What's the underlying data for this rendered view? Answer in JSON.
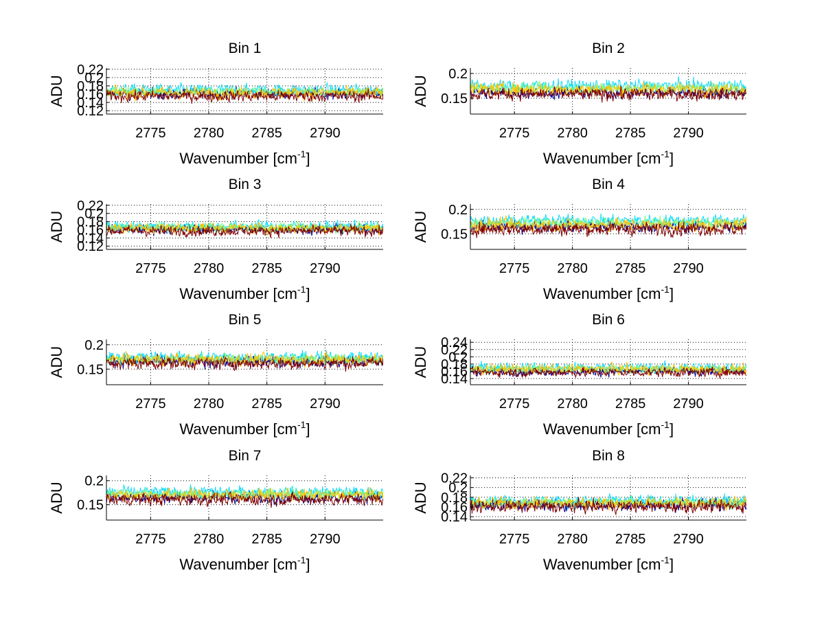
{
  "chart_data": {
    "type": "line",
    "layout": "4x2 subplot grid",
    "series_colors": [
      "#00008f",
      "#10dcf8",
      "#7cff82",
      "#ffc000",
      "#800000"
    ],
    "series_note": "5 overlaid noisy spectra per subplot (jet colormap); values summarized as mean and noise amplitude",
    "subplots": [
      {
        "title": "Bin 1",
        "xlabel": "Wavenumber [cm",
        "xlabel_sup": "-1",
        "xlabel_close": "]",
        "ylabel": "ADU",
        "xlim": [
          2771.2,
          2795
        ],
        "ylim": [
          0.112,
          0.223
        ],
        "xticks": [
          2775,
          2780,
          2785,
          2790
        ],
        "xtick_labels": [
          "2775",
          "2780",
          "2785",
          "2790"
        ],
        "yticks": [
          0.12,
          0.14,
          0.16,
          0.18,
          0.2,
          0.22
        ],
        "ytick_labels": [
          "0.12",
          "0.14",
          "0.16",
          "0.18",
          "0.2",
          "0.22"
        ],
        "grid": true,
        "series": [
          {
            "mean": 0.162,
            "noise": 0.012
          },
          {
            "mean": 0.17,
            "noise": 0.012
          },
          {
            "mean": 0.166,
            "noise": 0.01
          },
          {
            "mean": 0.163,
            "noise": 0.013
          },
          {
            "mean": 0.155,
            "noise": 0.012
          }
        ]
      },
      {
        "title": "Bin 2",
        "xlabel": "Wavenumber [cm",
        "xlabel_sup": "-1",
        "xlabel_close": "]",
        "ylabel": "ADU",
        "xlim": [
          2771.2,
          2795
        ],
        "ylim": [
          0.118,
          0.211
        ],
        "xticks": [
          2775,
          2780,
          2785,
          2790
        ],
        "xtick_labels": [
          "2775",
          "2780",
          "2785",
          "2790"
        ],
        "yticks": [
          0.15,
          0.2
        ],
        "ytick_labels": [
          "0.15",
          "0.2"
        ],
        "grid": true,
        "series": [
          {
            "mean": 0.162,
            "noise": 0.011
          },
          {
            "mean": 0.175,
            "noise": 0.011
          },
          {
            "mean": 0.17,
            "noise": 0.009
          },
          {
            "mean": 0.168,
            "noise": 0.012
          },
          {
            "mean": 0.158,
            "noise": 0.011
          }
        ]
      },
      {
        "title": "Bin 3",
        "xlabel": "Wavenumber [cm",
        "xlabel_sup": "-1",
        "xlabel_close": "]",
        "ylabel": "ADU",
        "xlim": [
          2771.2,
          2795
        ],
        "ylim": [
          0.112,
          0.223
        ],
        "xticks": [
          2775,
          2780,
          2785,
          2790
        ],
        "xtick_labels": [
          "2775",
          "2780",
          "2785",
          "2790"
        ],
        "yticks": [
          0.12,
          0.14,
          0.16,
          0.18,
          0.2,
          0.22
        ],
        "ytick_labels": [
          "0.12",
          "0.14",
          "0.16",
          "0.18",
          "0.2",
          "0.22"
        ],
        "grid": true,
        "series": [
          {
            "mean": 0.162,
            "noise": 0.011
          },
          {
            "mean": 0.168,
            "noise": 0.012
          },
          {
            "mean": 0.166,
            "noise": 0.01
          },
          {
            "mean": 0.164,
            "noise": 0.012
          },
          {
            "mean": 0.157,
            "noise": 0.011
          }
        ]
      },
      {
        "title": "Bin 4",
        "xlabel": "Wavenumber [cm",
        "xlabel_sup": "-1",
        "xlabel_close": "]",
        "ylabel": "ADU",
        "xlim": [
          2771.2,
          2795
        ],
        "ylim": [
          0.118,
          0.211
        ],
        "xticks": [
          2775,
          2780,
          2785,
          2790
        ],
        "xtick_labels": [
          "2775",
          "2780",
          "2785",
          "2790"
        ],
        "yticks": [
          0.15,
          0.2
        ],
        "ytick_labels": [
          "0.15",
          "0.2"
        ],
        "grid": true,
        "series": [
          {
            "mean": 0.165,
            "noise": 0.011
          },
          {
            "mean": 0.177,
            "noise": 0.011
          },
          {
            "mean": 0.172,
            "noise": 0.009
          },
          {
            "mean": 0.168,
            "noise": 0.012
          },
          {
            "mean": 0.16,
            "noise": 0.012
          }
        ]
      },
      {
        "title": "Bin 5",
        "xlabel": "Wavenumber [cm",
        "xlabel_sup": "-1",
        "xlabel_close": "]",
        "ylabel": "ADU",
        "xlim": [
          2771.2,
          2795
        ],
        "ylim": [
          0.118,
          0.211
        ],
        "xticks": [
          2775,
          2780,
          2785,
          2790
        ],
        "xtick_labels": [
          "2775",
          "2780",
          "2785",
          "2790"
        ],
        "yticks": [
          0.15,
          0.2
        ],
        "ytick_labels": [
          "0.15",
          "0.2"
        ],
        "grid": true,
        "series": [
          {
            "mean": 0.166,
            "noise": 0.011
          },
          {
            "mean": 0.174,
            "noise": 0.011
          },
          {
            "mean": 0.17,
            "noise": 0.009
          },
          {
            "mean": 0.17,
            "noise": 0.011
          },
          {
            "mean": 0.162,
            "noise": 0.011
          }
        ]
      },
      {
        "title": "Bin 6",
        "xlabel": "Wavenumber [cm",
        "xlabel_sup": "-1",
        "xlabel_close": "]",
        "ylabel": "ADU",
        "xlim": [
          2771.2,
          2795
        ],
        "ylim": [
          0.123,
          0.248
        ],
        "xticks": [
          2775,
          2780,
          2785,
          2790
        ],
        "xtick_labels": [
          "2775",
          "2780",
          "2785",
          "2790"
        ],
        "yticks": [
          0.14,
          0.16,
          0.18,
          0.2,
          0.22,
          0.24
        ],
        "ytick_labels": [
          "0.14",
          "0.16",
          "0.18",
          "0.2",
          "0.22",
          "0.24"
        ],
        "grid": true,
        "series": [
          {
            "mean": 0.16,
            "noise": 0.011
          },
          {
            "mean": 0.17,
            "noise": 0.013
          },
          {
            "mean": 0.166,
            "noise": 0.01
          },
          {
            "mean": 0.166,
            "noise": 0.012
          },
          {
            "mean": 0.157,
            "noise": 0.011
          }
        ]
      },
      {
        "title": "Bin 7",
        "xlabel": "Wavenumber [cm",
        "xlabel_sup": "-1",
        "xlabel_close": "]",
        "ylabel": "ADU",
        "xlim": [
          2771.2,
          2795
        ],
        "ylim": [
          0.118,
          0.211
        ],
        "xticks": [
          2775,
          2780,
          2785,
          2790
        ],
        "xtick_labels": [
          "2775",
          "2780",
          "2785",
          "2790"
        ],
        "yticks": [
          0.15,
          0.2
        ],
        "ytick_labels": [
          "0.15",
          "0.2"
        ],
        "grid": true,
        "series": [
          {
            "mean": 0.166,
            "noise": 0.011
          },
          {
            "mean": 0.176,
            "noise": 0.011
          },
          {
            "mean": 0.172,
            "noise": 0.009
          },
          {
            "mean": 0.17,
            "noise": 0.011
          },
          {
            "mean": 0.161,
            "noise": 0.011
          }
        ]
      },
      {
        "title": "Bin 8",
        "xlabel": "Wavenumber [cm",
        "xlabel_sup": "-1",
        "xlabel_close": "]",
        "ylabel": "ADU",
        "xlim": [
          2771.2,
          2795
        ],
        "ylim": [
          0.133,
          0.225
        ],
        "xticks": [
          2775,
          2780,
          2785,
          2790
        ],
        "xtick_labels": [
          "2775",
          "2780",
          "2785",
          "2790"
        ],
        "yticks": [
          0.14,
          0.16,
          0.18,
          0.2,
          0.22
        ],
        "ytick_labels": [
          "0.14",
          "0.16",
          "0.18",
          "0.2",
          "0.22"
        ],
        "grid": true,
        "series": [
          {
            "mean": 0.165,
            "noise": 0.011
          },
          {
            "mean": 0.172,
            "noise": 0.011
          },
          {
            "mean": 0.169,
            "noise": 0.009
          },
          {
            "mean": 0.168,
            "noise": 0.011
          },
          {
            "mean": 0.161,
            "noise": 0.011
          }
        ]
      }
    ]
  }
}
